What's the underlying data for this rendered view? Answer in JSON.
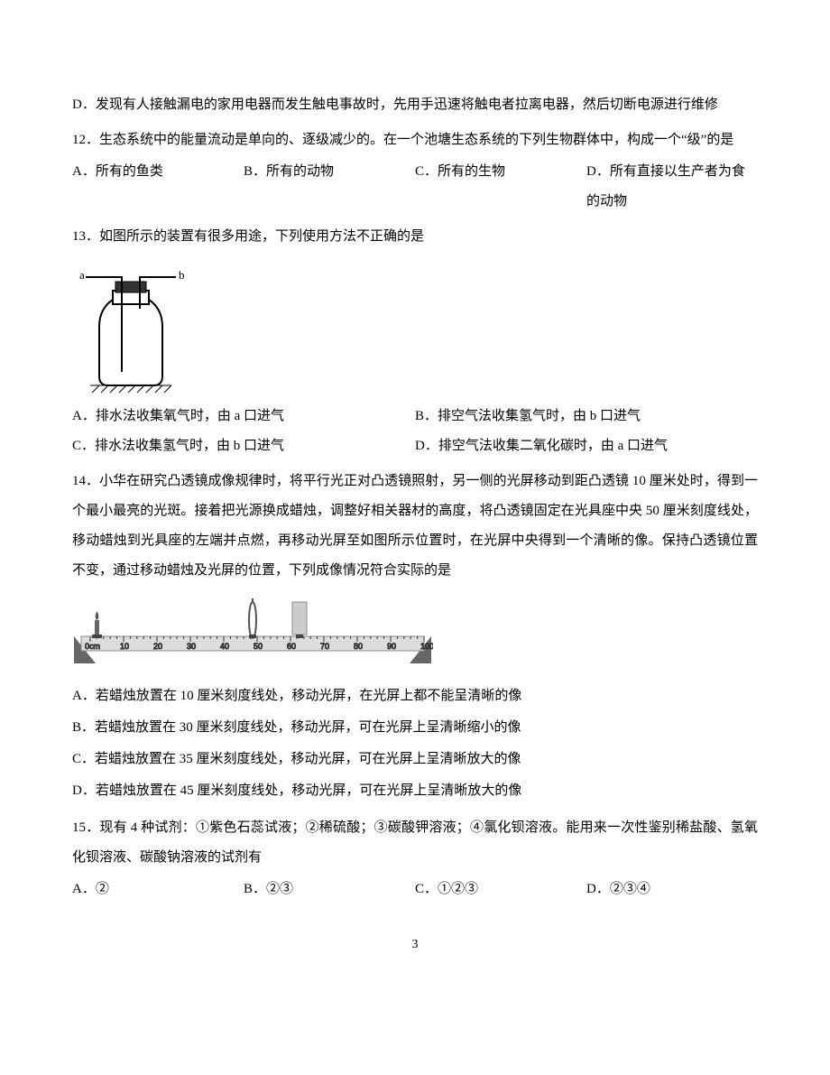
{
  "page_number": "3",
  "q11_optD": "D．发现有人接触漏电的家用电器而发生触电事故时，先用手迅速将触电者拉离电器，然后切断电源进行维修",
  "q12": {
    "stem": "12．生态系统中的能量流动是单向的、逐级减少的。在一个池塘生态系统的下列生物群体中，构成一个“级”的是",
    "A": "A．所有的鱼类",
    "B": "B．所有的动物",
    "C": "C．所有的生物",
    "D": "D．所有直接以生产者为食的动物"
  },
  "q13": {
    "stem": "13．如图所示的装置有很多用途，下列使用方法不正确的是",
    "A": "A．排水法收集氧气时，由 a 口进气",
    "B": "B．排空气法收集氢气时，由 b 口进气",
    "C": "C．排水法收集氢气时，由 b 口进气",
    "D": "D．排空气法收集二氧化碳时，由 a 口进气",
    "figure": {
      "label_a": "a",
      "label_b": "b",
      "stroke": "#000000",
      "fill": "#ffffff"
    }
  },
  "q14": {
    "stem": "14．小华在研究凸透镜成像规律时，将平行光正对凸透镜照射，另一侧的光屏移动到距凸透镜 10 厘米处时，得到一个最小最亮的光斑。接着把光源换成蜡烛，调整好相关器材的高度，将凸透镜固定在光具座中央 50 厘米刻度线处，移动蜡烛到光具座的左端并点燃，再移动光屏至如图所示位置时，在光屏中央得到一个清晰的像。保持凸透镜位置不变，通过移动蜡烛及光屏的位置，下列成像情况符合实际的是",
    "A": "A．若蜡烛放置在 10 厘米刻度线处，移动光屏，在光屏上都不能呈清晰的像",
    "B": "B．若蜡烛放置在 30 厘米刻度线处，移动光屏，可在光屏上呈清晰缩小的像",
    "C": "C．若蜡烛放置在 35 厘米刻度线处，移动光屏，可在光屏上呈清晰放大的像",
    "D": "D．若蜡烛放置在 45 厘米刻度线处，移动光屏，可在光屏上呈清晰放大的像",
    "figure": {
      "ticks": [
        "0cm",
        "10",
        "20",
        "30",
        "40",
        "50",
        "60",
        "70",
        "80",
        "90",
        "100"
      ],
      "track_color": "#888888",
      "tick_color": "#333333",
      "candle_color": "#666666",
      "flame_color": "#555555",
      "lens_color": "#555555",
      "screen_color": "#aaaaaa",
      "stand_color": "#666666"
    }
  },
  "q15": {
    "stem": "15．现有 4 种试剂：①紫色石蕊试液；②稀硫酸；③碳酸钾溶液；④氯化钡溶液。能用来一次性鉴别稀盐酸、氢氧化钡溶液、碳酸钠溶液的试剂有",
    "A": "A．②",
    "B": "B．②③",
    "C": "C．①②③",
    "D": "D．②③④"
  }
}
